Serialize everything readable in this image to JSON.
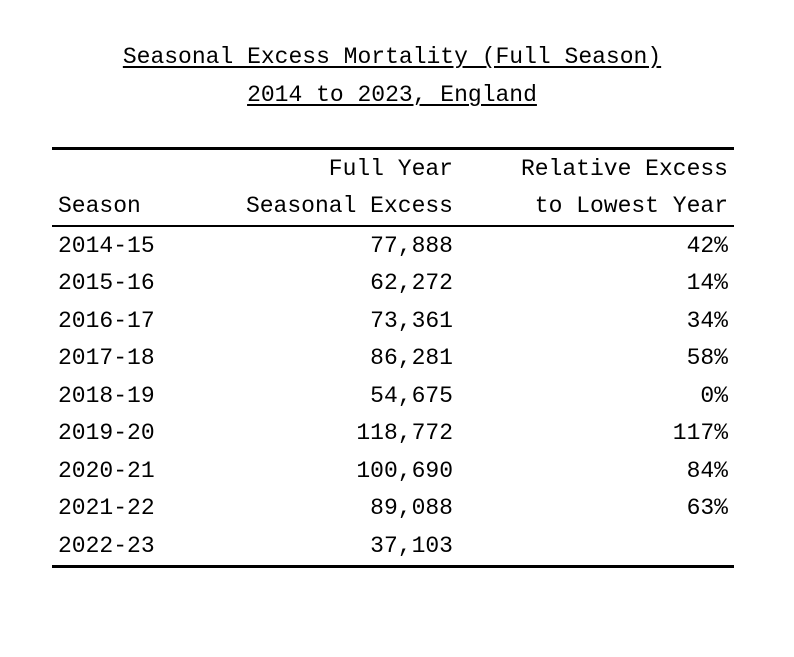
{
  "title": {
    "line1": "Seasonal Excess Mortality (Full Season)",
    "line2": "2014 to 2023, England"
  },
  "table": {
    "header_top": {
      "col1": "",
      "col2": "Full Year",
      "col3": "Relative Excess"
    },
    "header_bottom": {
      "col1": "Season",
      "col2": "Seasonal Excess",
      "col3": "to Lowest Year"
    },
    "rows": [
      {
        "season": "2014-15",
        "excess": "77,888",
        "relative": "42%"
      },
      {
        "season": "2015-16",
        "excess": "62,272",
        "relative": "14%"
      },
      {
        "season": "2016-17",
        "excess": "73,361",
        "relative": "34%"
      },
      {
        "season": "2017-18",
        "excess": "86,281",
        "relative": "58%"
      },
      {
        "season": "2018-19",
        "excess": "54,675",
        "relative": "0%"
      },
      {
        "season": "2019-20",
        "excess": "118,772",
        "relative": "117%"
      },
      {
        "season": "2020-21",
        "excess": "100,690",
        "relative": "84%"
      },
      {
        "season": "2021-22",
        "excess": "89,088",
        "relative": "63%"
      },
      {
        "season": "2022-23",
        "excess": "37,103",
        "relative": ""
      }
    ]
  }
}
